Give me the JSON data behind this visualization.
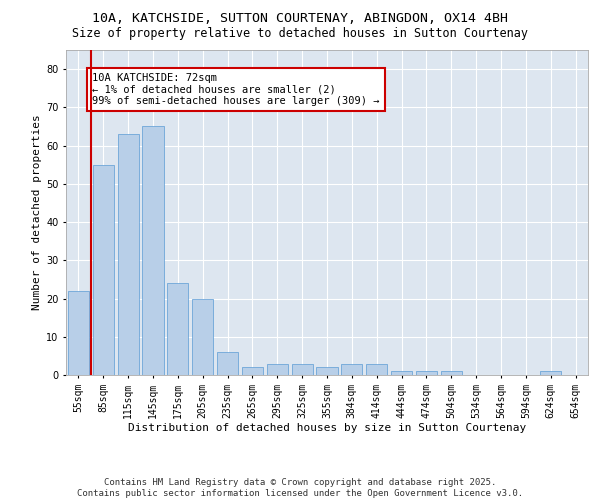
{
  "title_line1": "10A, KATCHSIDE, SUTTON COURTENAY, ABINGDON, OX14 4BH",
  "title_line2": "Size of property relative to detached houses in Sutton Courtenay",
  "xlabel": "Distribution of detached houses by size in Sutton Courtenay",
  "ylabel": "Number of detached properties",
  "categories": [
    "55sqm",
    "85sqm",
    "115sqm",
    "145sqm",
    "175sqm",
    "205sqm",
    "235sqm",
    "265sqm",
    "295sqm",
    "325sqm",
    "355sqm",
    "384sqm",
    "414sqm",
    "444sqm",
    "474sqm",
    "504sqm",
    "534sqm",
    "564sqm",
    "594sqm",
    "624sqm",
    "654sqm"
  ],
  "values": [
    22,
    55,
    63,
    65,
    24,
    20,
    6,
    2,
    3,
    3,
    2,
    3,
    3,
    1,
    1,
    1,
    0,
    0,
    0,
    1,
    0
  ],
  "bar_color": "#b8cfe8",
  "bar_edge_color": "#5b9bd5",
  "annotation_text": "10A KATCHSIDE: 72sqm\n← 1% of detached houses are smaller (2)\n99% of semi-detached houses are larger (309) →",
  "annotation_box_color": "#ffffff",
  "annotation_box_edge_color": "#cc0000",
  "vline_x": 0.5,
  "vline_color": "#cc0000",
  "ylim": [
    0,
    85
  ],
  "yticks": [
    0,
    10,
    20,
    30,
    40,
    50,
    60,
    70,
    80
  ],
  "background_color": "#dde6f0",
  "grid_color": "#ffffff",
  "footer_text": "Contains HM Land Registry data © Crown copyright and database right 2025.\nContains public sector information licensed under the Open Government Licence v3.0.",
  "title_fontsize": 9.5,
  "subtitle_fontsize": 8.5,
  "axis_label_fontsize": 8,
  "tick_fontsize": 7,
  "annotation_fontsize": 7.5,
  "footer_fontsize": 6.5
}
